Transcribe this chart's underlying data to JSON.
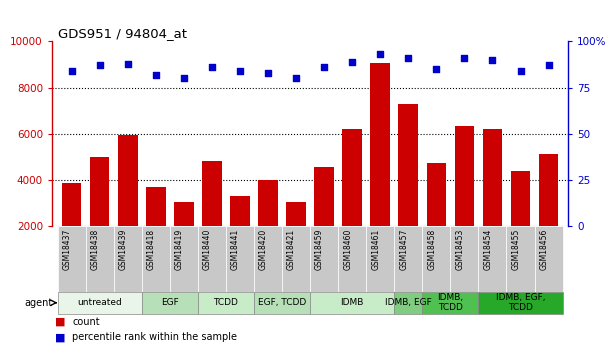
{
  "title": "GDS951 / 94804_at",
  "samples": [
    "GSM18437",
    "GSM18438",
    "GSM18439",
    "GSM18418",
    "GSM18419",
    "GSM18440",
    "GSM18441",
    "GSM18420",
    "GSM18421",
    "GSM18459",
    "GSM18460",
    "GSM18461",
    "GSM18457",
    "GSM18458",
    "GSM18453",
    "GSM18454",
    "GSM18455",
    "GSM18456"
  ],
  "counts": [
    3850,
    5000,
    5950,
    3700,
    3050,
    4800,
    3300,
    4000,
    3050,
    4550,
    6200,
    9050,
    7300,
    4750,
    6350,
    6200,
    4400,
    5100
  ],
  "percentiles": [
    84,
    87,
    88,
    82,
    80,
    86,
    84,
    83,
    80,
    86,
    89,
    93,
    91,
    85,
    91,
    90,
    84,
    87
  ],
  "ylim_left": [
    2000,
    10000
  ],
  "ylim_right": [
    0,
    100
  ],
  "yticks_left": [
    2000,
    4000,
    6000,
    8000,
    10000
  ],
  "yticks_right": [
    0,
    25,
    50,
    75,
    100
  ],
  "ytick_labels_right": [
    "0",
    "25",
    "50",
    "75",
    "100%"
  ],
  "groups": [
    {
      "label": "untreated",
      "start": 0,
      "end": 3,
      "color": "#e8f5e8"
    },
    {
      "label": "EGF",
      "start": 3,
      "end": 5,
      "color": "#b8e0b8"
    },
    {
      "label": "TCDD",
      "start": 5,
      "end": 7,
      "color": "#c8ecc8"
    },
    {
      "label": "EGF, TCDD",
      "start": 7,
      "end": 9,
      "color": "#b8e0b8"
    },
    {
      "label": "IDMB",
      "start": 9,
      "end": 12,
      "color": "#c8ecc8"
    },
    {
      "label": "IDMB, EGF",
      "start": 12,
      "end": 13,
      "color": "#80cc80"
    },
    {
      "label": "IDMB,\nTCDD",
      "start": 13,
      "end": 15,
      "color": "#50c050"
    },
    {
      "label": "IDMB, EGF,\nTCDD",
      "start": 15,
      "end": 18,
      "color": "#28a828"
    }
  ],
  "bar_color": "#cc0000",
  "dot_color": "#0000cc",
  "grid_color": "#000000",
  "ylabel_left_color": "#cc0000",
  "ylabel_right_color": "#0000cc",
  "legend_count_color": "#cc0000",
  "legend_percentile_color": "#0000cc",
  "background_sample": "#c8c8c8",
  "agent_label_fontsize": 7,
  "sample_fontsize": 6,
  "group_fontsize": 6.5
}
